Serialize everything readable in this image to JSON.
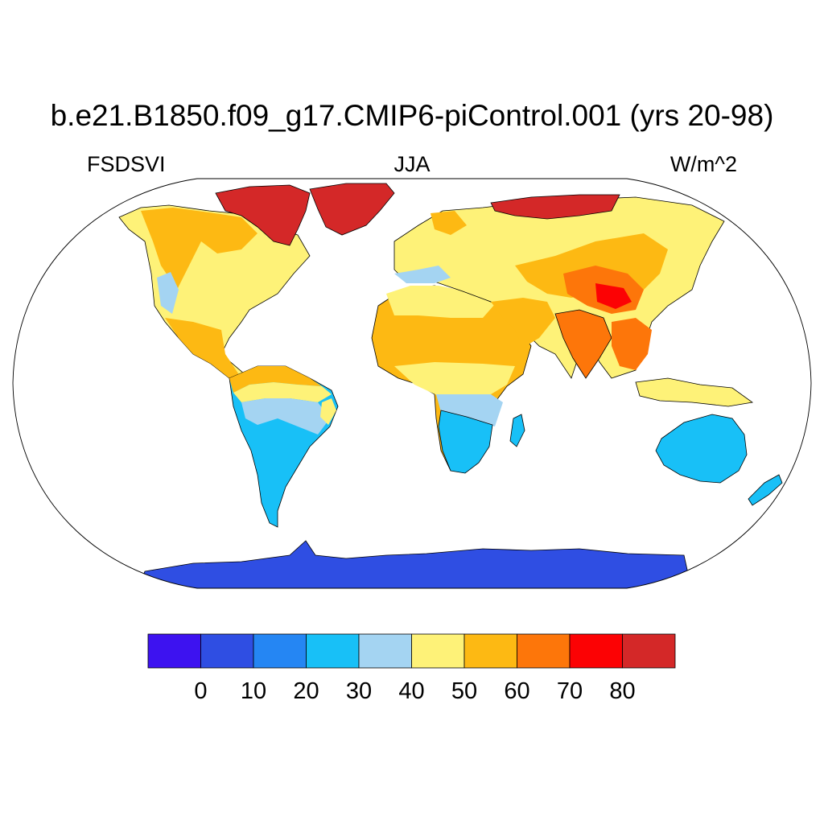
{
  "title": "b.e21.B1850.f09_g17.CMIP6-piControl.001 (yrs 20-98)",
  "left_label": "FSDSVI",
  "center_label": "JJA",
  "right_label": "W/m^2",
  "colorbar": {
    "colors": [
      "#3d12f0",
      "#2f4ee3",
      "#2586f3",
      "#18c0f7",
      "#a4d4f2",
      "#fef278",
      "#fdb913",
      "#fd760a",
      "#fc0204",
      "#d42828"
    ],
    "labels": [
      "0",
      "10",
      "20",
      "30",
      "40",
      "50",
      "60",
      "70",
      "80"
    ]
  },
  "regions": [
    {
      "name": "antarctica",
      "color": "#2f4ee3"
    },
    {
      "name": "greenland",
      "color": "#d42828"
    },
    {
      "name": "north-america",
      "color": "#fef278"
    },
    {
      "name": "south-america",
      "color": "#18c0f7"
    },
    {
      "name": "africa",
      "color": "#fdb913"
    },
    {
      "name": "southern-africa",
      "color": "#18c0f7"
    },
    {
      "name": "eurasia",
      "color": "#fef278"
    },
    {
      "name": "australia",
      "color": "#18c0f7"
    }
  ]
}
